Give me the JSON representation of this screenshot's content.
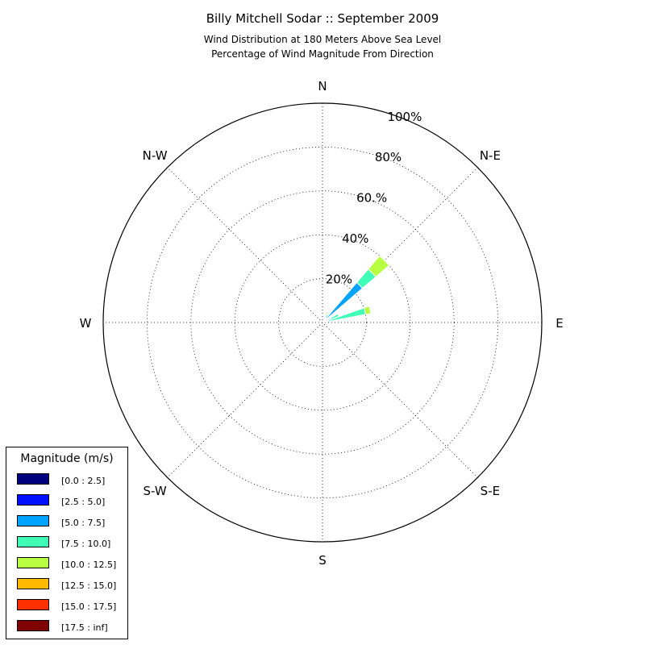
{
  "chart_data": {
    "type": "windrose",
    "title": "Billy Mitchell Sodar :: September 2009",
    "subtitle_lines": [
      "Wind Distribution at 180 Meters Above Sea Level",
      "Percentage of Wind Magnitude From Direction"
    ],
    "directions": [
      "N",
      "N-E",
      "E",
      "S-E",
      "S",
      "S-W",
      "W",
      "N-W"
    ],
    "radial_ticks": [
      "20%",
      "40%",
      "60.%",
      "80%",
      "100%"
    ],
    "radial_values": [
      20,
      40,
      60,
      80,
      100
    ],
    "rmax": 100,
    "grid": true,
    "legend": {
      "title": "Magnitude (m/s)",
      "placement": "bottom-left",
      "items": [
        {
          "label": "[0.0 : 2.5]",
          "color": "#00007f"
        },
        {
          "label": "[2.5 : 5.0]",
          "color": "#0010ff"
        },
        {
          "label": "[5.0 : 7.5]",
          "color": "#00a4ff"
        },
        {
          "label": "[7.5 : 10.0]",
          "color": "#40ffb7"
        },
        {
          "label": "[10.0 : 12.5]",
          "color": "#b7ff40"
        },
        {
          "label": "[12.5 : 15.0]",
          "color": "#ffb900"
        },
        {
          "label": "[15.0 : 17.5]",
          "color": "#ff3000"
        },
        {
          "label": "[17.5 : inf]",
          "color": "#7f0000"
        }
      ]
    },
    "bin_width_deg": 10,
    "bars": [
      {
        "direction_deg": 25,
        "cumulative": [
          1,
          2,
          3,
          4,
          5
        ]
      },
      {
        "direction_deg": 35,
        "cumulative": [
          1,
          2,
          4,
          4.5
        ]
      },
      {
        "direction_deg": 45,
        "cumulative": [
          1,
          3,
          24,
          32,
          40
        ]
      },
      {
        "direction_deg": 65,
        "cumulative": [
          0.5,
          1.5,
          4,
          8
        ]
      },
      {
        "direction_deg": 75,
        "cumulative": [
          0.5,
          1,
          3,
          20,
          22.5
        ]
      }
    ]
  }
}
